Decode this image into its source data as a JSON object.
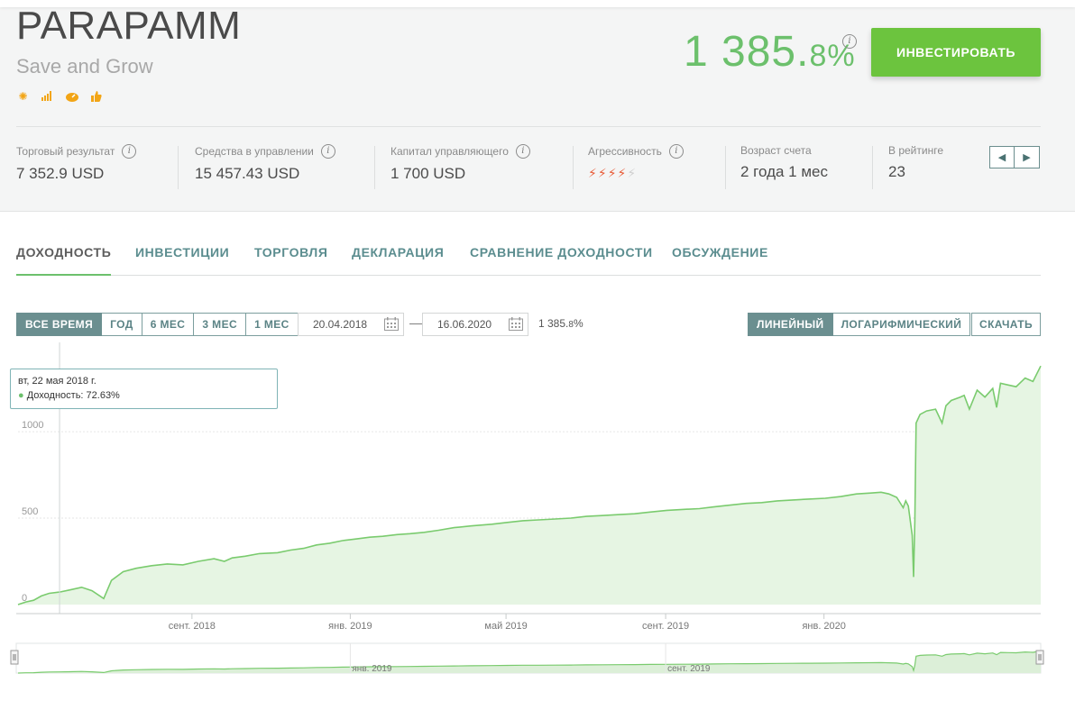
{
  "header": {
    "title": "PARAPAMM",
    "subtitle": "Save and Grow",
    "badges": [
      "wrench-sun-icon",
      "bars-icon",
      "gauge-icon",
      "thumb-up-icon"
    ],
    "roi_int": "1 385.",
    "roi_frac": "8",
    "roi_unit": "%",
    "invest_label": "ИНВЕСТИРОВАТЬ"
  },
  "stats": {
    "trade_result": {
      "label": "Торговый результат",
      "value": "7 352.9 USD"
    },
    "funds_managed": {
      "label": "Средства в управлении",
      "value": "15 457.43 USD"
    },
    "manager_capital": {
      "label": "Капитал управляющего",
      "value": "1 700 USD"
    },
    "aggressiveness": {
      "label": "Агрессивность",
      "level": 4,
      "max": 5
    },
    "account_age": {
      "label": "Возраст счета",
      "value": "2 года 1 мес"
    },
    "rating": {
      "label": "В рейтинге",
      "value": "23"
    }
  },
  "tabs": [
    {
      "label": "ДОХОДНОСТЬ",
      "active": true
    },
    {
      "label": "ИНВЕСТИЦИИ"
    },
    {
      "label": "ТОРГОВЛЯ"
    },
    {
      "label": "ДЕКЛАРАЦИЯ"
    },
    {
      "label": "СРАВНЕНИЕ ДОХОДНОСТИ"
    },
    {
      "label": "ОБСУЖДЕНИЕ"
    }
  ],
  "controls": {
    "periods": [
      "ВСЕ ВРЕМЯ",
      "ГОД",
      "6 МЕС",
      "3 МЕС",
      "1 МЕС"
    ],
    "active_period": "ВСЕ ВРЕМЯ",
    "date_from": "20.04.2018",
    "date_to": "16.06.2020",
    "range_int": "1 385.",
    "range_frac": "8",
    "range_unit": "%",
    "scales": [
      "ЛИНЕЙНЫЙ",
      "ЛОГАРИФМИЧЕСКИЙ"
    ],
    "active_scale": "ЛИНЕЙНЫЙ",
    "download_label": "СКАЧАТЬ"
  },
  "tooltip": {
    "date": "вт, 22 мая 2018 г.",
    "bullet": "●",
    "text": "Доходность: 72.63%"
  },
  "colors": {
    "accent": "#6cc06c",
    "invest": "#6cc43e",
    "teal": "#5b8d8f",
    "bolt": "#e85a36"
  },
  "chart_data": {
    "type": "area",
    "x_start": "2018-04-20",
    "x_end": "2020-06-16",
    "y_ticks": [
      "0",
      "500",
      "1000"
    ],
    "ylim": [
      0,
      1400
    ],
    "x_ticks": [
      {
        "date": "2018-09-01",
        "label": "сент. 2018"
      },
      {
        "date": "2019-01-01",
        "label": "янв. 2019"
      },
      {
        "date": "2019-05-01",
        "label": "май 2019"
      },
      {
        "date": "2019-09-01",
        "label": "сент. 2019"
      },
      {
        "date": "2020-01-01",
        "label": "янв. 2020"
      }
    ],
    "navigator_labels": [
      {
        "date": "2019-01-01",
        "label": "янв. 2019"
      },
      {
        "date": "2019-09-01",
        "label": "сент. 2019"
      }
    ],
    "hover_date": "2018-05-22",
    "x": [
      "2018-04-20",
      "2018-04-26",
      "2018-05-02",
      "2018-05-08",
      "2018-05-14",
      "2018-05-22",
      "2018-05-30",
      "2018-06-08",
      "2018-06-16",
      "2018-06-25",
      "2018-07-01",
      "2018-07-10",
      "2018-07-20",
      "2018-08-01",
      "2018-08-13",
      "2018-08-25",
      "2018-09-06",
      "2018-09-18",
      "2018-09-26",
      "2018-10-02",
      "2018-10-12",
      "2018-10-23",
      "2018-11-06",
      "2018-11-16",
      "2018-11-26",
      "2018-12-06",
      "2018-12-16",
      "2018-12-26",
      "2019-01-06",
      "2019-01-16",
      "2019-01-26",
      "2019-02-06",
      "2019-02-16",
      "2019-02-27",
      "2019-03-10",
      "2019-03-22",
      "2019-04-04",
      "2019-04-20",
      "2019-05-02",
      "2019-05-14",
      "2019-05-26",
      "2019-06-08",
      "2019-06-20",
      "2019-07-02",
      "2019-07-14",
      "2019-07-26",
      "2019-08-08",
      "2019-08-20",
      "2019-09-02",
      "2019-09-14",
      "2019-09-27",
      "2019-10-08",
      "2019-10-20",
      "2019-11-02",
      "2019-11-14",
      "2019-11-26",
      "2019-12-08",
      "2019-12-20",
      "2020-01-02",
      "2020-01-14",
      "2020-01-26",
      "2020-02-06",
      "2020-02-14",
      "2020-02-20",
      "2020-02-26",
      "2020-03-02",
      "2020-03-04",
      "2020-03-06",
      "2020-03-09",
      "2020-03-10",
      "2020-03-11",
      "2020-03-12",
      "2020-03-15",
      "2020-03-20",
      "2020-03-27",
      "2020-04-01",
      "2020-04-04",
      "2020-04-08",
      "2020-04-15",
      "2020-04-18",
      "2020-04-22",
      "2020-04-28",
      "2020-05-04",
      "2020-05-10",
      "2020-05-13",
      "2020-05-16",
      "2020-05-22",
      "2020-05-28",
      "2020-06-04",
      "2020-06-10",
      "2020-06-16"
    ],
    "values": [
      0,
      15,
      25,
      50,
      65,
      72.63,
      85,
      100,
      80,
      35,
      140,
      190,
      210,
      225,
      235,
      230,
      250,
      265,
      250,
      270,
      280,
      295,
      300,
      315,
      325,
      345,
      355,
      370,
      380,
      390,
      395,
      405,
      410,
      418,
      430,
      445,
      455,
      465,
      475,
      485,
      490,
      495,
      500,
      510,
      515,
      520,
      525,
      535,
      545,
      550,
      555,
      565,
      575,
      585,
      590,
      600,
      605,
      610,
      615,
      625,
      640,
      645,
      650,
      640,
      620,
      560,
      600,
      570,
      400,
      160,
      480,
      1050,
      1100,
      1120,
      1130,
      1050,
      1150,
      1180,
      1200,
      1210,
      1130,
      1240,
      1200,
      1250,
      1140,
      1280,
      1270,
      1260,
      1310,
      1290,
      1380
    ]
  }
}
